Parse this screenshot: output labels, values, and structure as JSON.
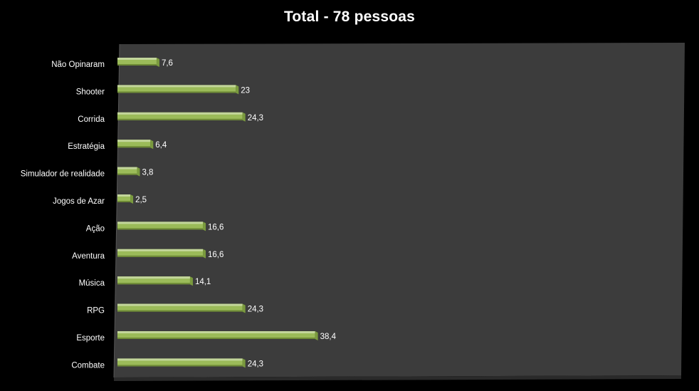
{
  "chart_data": {
    "type": "bar",
    "orientation": "horizontal",
    "title": "Total  - 78 pessoas",
    "categories": [
      "Não Opinaram",
      "Shooter",
      "Corrida",
      "Estratégia",
      "Simulador de realidade",
      "Jogos de Azar",
      "Ação",
      "Aventura",
      "Música",
      "RPG",
      "Esporte",
      "Combate"
    ],
    "value_labels": [
      "7,6",
      "23",
      "24,3",
      "6,4",
      "3,8",
      "2,5",
      "16,6",
      "16,6",
      "14,1",
      "24,3",
      "38,4",
      "24,3"
    ],
    "values": [
      7.6,
      23,
      24.3,
      6.4,
      3.8,
      2.5,
      16.6,
      16.6,
      14.1,
      24.3,
      38.4,
      24.3
    ],
    "xlim": [
      0,
      40
    ],
    "grid": false,
    "legend": "none",
    "colors": {
      "bar_front": "#9bbb59",
      "bar_top": "#c3d69b",
      "bar_bottom": "#6e8a36",
      "bar_end": "#7a9a3e",
      "plot_back": "#3c3c3c",
      "plot_floor": "#2a2a2a",
      "background": "#000000",
      "text": "#ffffff"
    }
  }
}
